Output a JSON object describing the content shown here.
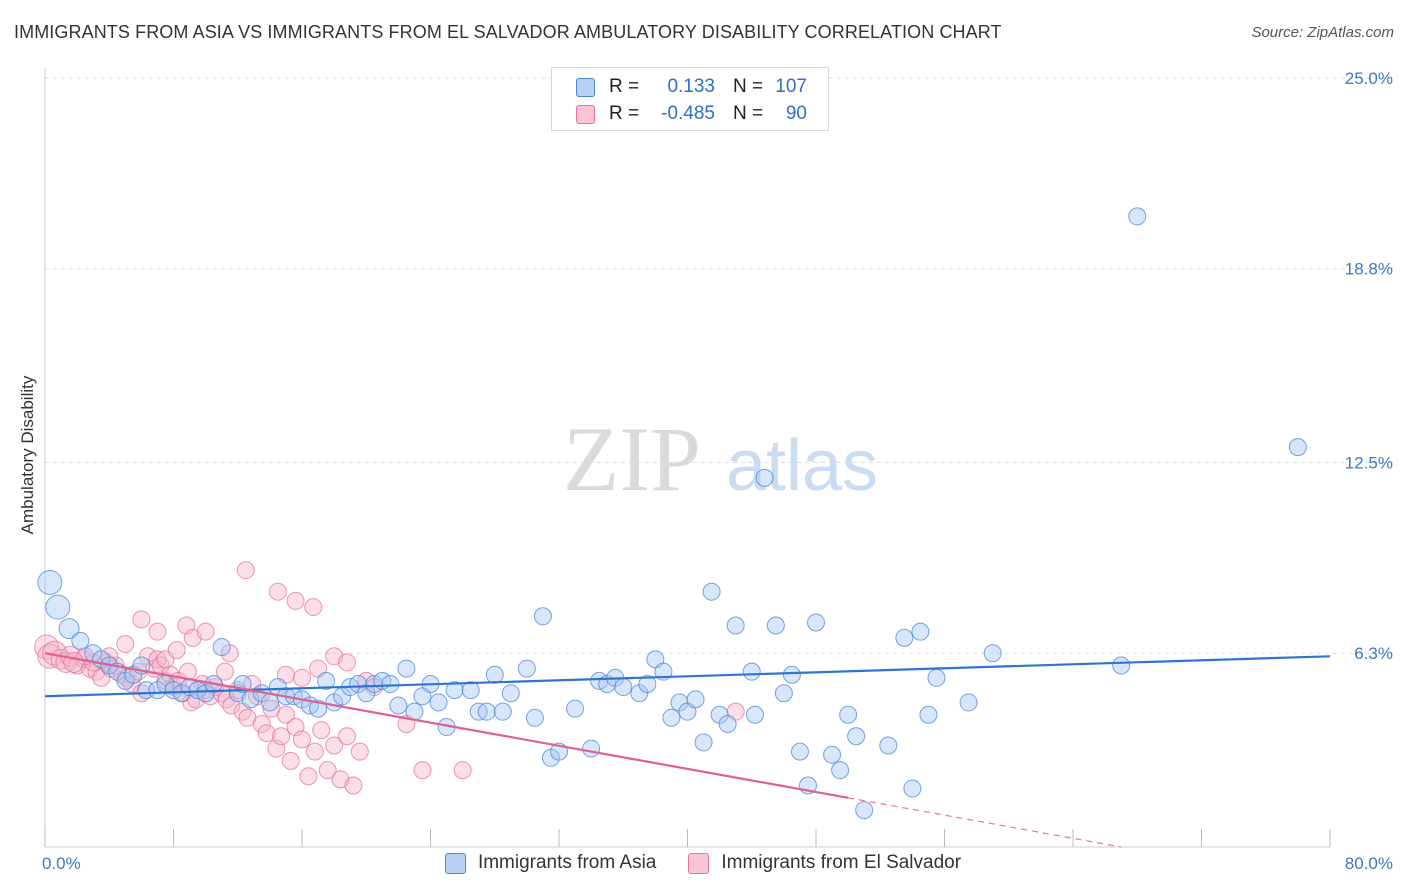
{
  "title": "IMMIGRANTS FROM ASIA VS IMMIGRANTS FROM EL SALVADOR AMBULATORY DISABILITY CORRELATION CHART",
  "source": "Source: ZipAtlas.com",
  "watermark": {
    "zip": "ZIP",
    "atlas": "atlas"
  },
  "colors": {
    "asia": "#4a86d8",
    "asia_fill": "#a9c7f2",
    "salvador": "#e8729c",
    "salvador_fill": "#f5b6cb",
    "axis_label": "#3a78c9",
    "grid": "#dddddd"
  },
  "legend": {
    "asia": {
      "r_label": "R =",
      "r_value": "0.133",
      "n_label": "N =",
      "n_value": "107"
    },
    "salvador": {
      "r_label": "R =",
      "r_value": "-0.485",
      "n_label": "N =",
      "n_value": "90"
    }
  },
  "chart_data": {
    "type": "scatter",
    "title": "IMMIGRANTS FROM ASIA VS IMMIGRANTS FROM EL SALVADOR AMBULATORY DISABILITY CORRELATION CHART",
    "xlabel": "",
    "ylabel": "Ambulatory Disability",
    "xlim": [
      0,
      80
    ],
    "ylim": [
      0,
      25
    ],
    "x_tick_labels": [
      "0.0%",
      "80.0%"
    ],
    "y_tick_labels": [
      "6.3%",
      "12.5%",
      "18.8%",
      "25.0%"
    ],
    "y_ticks": [
      6.3,
      12.5,
      18.8,
      25.0
    ],
    "grid": true,
    "legend_placement": "top-center",
    "series": [
      {
        "name": "Immigrants from Asia",
        "trend": {
          "x": [
            0,
            80
          ],
          "y": [
            4.9,
            6.2
          ]
        },
        "points": [
          [
            0.3,
            8.6
          ],
          [
            0.8,
            7.8
          ],
          [
            1.5,
            7.1
          ],
          [
            2.2,
            6.7
          ],
          [
            3.0,
            6.3
          ],
          [
            3.5,
            6.1
          ],
          [
            4.0,
            5.9
          ],
          [
            4.5,
            5.7
          ],
          [
            5.0,
            5.4
          ],
          [
            5.5,
            5.6
          ],
          [
            6.0,
            5.9
          ],
          [
            6.3,
            5.1
          ],
          [
            7.0,
            5.1
          ],
          [
            7.5,
            5.3
          ],
          [
            8.0,
            5.1
          ],
          [
            8.5,
            5.0
          ],
          [
            9.0,
            5.2
          ],
          [
            9.5,
            5.1
          ],
          [
            10.0,
            5.0
          ],
          [
            10.5,
            5.3
          ],
          [
            11.0,
            6.5
          ],
          [
            12.0,
            5.0
          ],
          [
            12.3,
            5.3
          ],
          [
            12.8,
            4.8
          ],
          [
            13.5,
            5.0
          ],
          [
            14.0,
            4.7
          ],
          [
            14.5,
            5.2
          ],
          [
            15.0,
            4.9
          ],
          [
            15.5,
            4.9
          ],
          [
            16.0,
            4.8
          ],
          [
            16.5,
            4.6
          ],
          [
            17.0,
            4.5
          ],
          [
            17.5,
            5.4
          ],
          [
            18.0,
            4.7
          ],
          [
            18.5,
            4.9
          ],
          [
            19.0,
            5.2
          ],
          [
            19.5,
            5.3
          ],
          [
            20.0,
            5.0
          ],
          [
            20.5,
            5.3
          ],
          [
            21.0,
            5.4
          ],
          [
            21.5,
            5.3
          ],
          [
            22.0,
            4.6
          ],
          [
            22.5,
            5.8
          ],
          [
            23.0,
            4.4
          ],
          [
            23.5,
            4.9
          ],
          [
            24.0,
            5.3
          ],
          [
            24.5,
            4.7
          ],
          [
            25.0,
            3.9
          ],
          [
            25.5,
            5.1
          ],
          [
            26.5,
            5.1
          ],
          [
            27.0,
            4.4
          ],
          [
            27.5,
            4.4
          ],
          [
            28.0,
            5.6
          ],
          [
            28.5,
            4.4
          ],
          [
            29.0,
            5.0
          ],
          [
            30.0,
            5.8
          ],
          [
            30.5,
            4.2
          ],
          [
            31.0,
            7.5
          ],
          [
            31.5,
            2.9
          ],
          [
            32.0,
            3.1
          ],
          [
            33.0,
            4.5
          ],
          [
            34.0,
            3.2
          ],
          [
            34.5,
            5.4
          ],
          [
            35.0,
            5.3
          ],
          [
            35.5,
            5.5
          ],
          [
            36.0,
            5.2
          ],
          [
            37.0,
            5.0
          ],
          [
            37.5,
            5.3
          ],
          [
            38.0,
            6.1
          ],
          [
            38.5,
            5.7
          ],
          [
            39.0,
            4.2
          ],
          [
            39.5,
            4.7
          ],
          [
            40.0,
            4.4
          ],
          [
            40.5,
            4.8
          ],
          [
            41.0,
            3.4
          ],
          [
            41.5,
            8.3
          ],
          [
            42.0,
            4.3
          ],
          [
            42.5,
            4.0
          ],
          [
            43.0,
            7.2
          ],
          [
            44.0,
            5.7
          ],
          [
            44.2,
            4.3
          ],
          [
            44.8,
            12.0
          ],
          [
            45.5,
            7.2
          ],
          [
            46.0,
            5.0
          ],
          [
            46.5,
            5.6
          ],
          [
            47.0,
            3.1
          ],
          [
            47.5,
            2.0
          ],
          [
            48.0,
            7.3
          ],
          [
            49.0,
            3.0
          ],
          [
            49.5,
            2.5
          ],
          [
            50.0,
            4.3
          ],
          [
            50.5,
            3.6
          ],
          [
            51.0,
            1.2
          ],
          [
            52.5,
            3.3
          ],
          [
            53.5,
            6.8
          ],
          [
            54.0,
            1.9
          ],
          [
            54.5,
            7.0
          ],
          [
            55.0,
            4.3
          ],
          [
            55.5,
            5.5
          ],
          [
            57.5,
            4.7
          ],
          [
            59.0,
            6.3
          ],
          [
            67.0,
            5.9
          ],
          [
            68.0,
            20.5
          ],
          [
            78.0,
            13.0
          ]
        ]
      },
      {
        "name": "Immigrants from El Salvador",
        "trend": {
          "x": [
            0,
            50
          ],
          "y": [
            6.3,
            1.6
          ]
        },
        "trend_extrapolated": {
          "x": [
            50,
            67
          ],
          "y": [
            1.6,
            0.0
          ]
        },
        "points": [
          [
            0.1,
            6.5
          ],
          [
            0.3,
            6.2
          ],
          [
            0.6,
            6.3
          ],
          [
            1.0,
            6.1
          ],
          [
            1.3,
            6.0
          ],
          [
            1.6,
            6.2
          ],
          [
            2.0,
            5.9
          ],
          [
            2.4,
            6.1
          ],
          [
            2.8,
            5.8
          ],
          [
            3.2,
            5.7
          ],
          [
            3.5,
            5.5
          ],
          [
            3.8,
            6.0
          ],
          [
            4.1,
            5.8
          ],
          [
            4.4,
            5.9
          ],
          [
            4.8,
            5.6
          ],
          [
            5.1,
            5.5
          ],
          [
            5.4,
            5.3
          ],
          [
            5.8,
            5.7
          ],
          [
            6.0,
            5.0
          ],
          [
            6.4,
            6.2
          ],
          [
            6.8,
            5.8
          ],
          [
            7.0,
            6.1
          ],
          [
            7.2,
            5.9
          ],
          [
            7.5,
            5.4
          ],
          [
            7.8,
            5.6
          ],
          [
            8.0,
            5.2
          ],
          [
            8.3,
            5.4
          ],
          [
            8.6,
            5.0
          ],
          [
            8.9,
            5.7
          ],
          [
            9.1,
            4.7
          ],
          [
            9.4,
            4.8
          ],
          [
            9.8,
            5.3
          ],
          [
            10.0,
            5.1
          ],
          [
            10.3,
            4.9
          ],
          [
            10.6,
            5.2
          ],
          [
            11.0,
            5.0
          ],
          [
            11.3,
            4.8
          ],
          [
            11.6,
            4.6
          ],
          [
            12.0,
            5.1
          ],
          [
            12.3,
            4.4
          ],
          [
            12.6,
            4.2
          ],
          [
            12.9,
            5.3
          ],
          [
            13.2,
            4.9
          ],
          [
            13.5,
            4.0
          ],
          [
            13.8,
            3.7
          ],
          [
            14.1,
            4.5
          ],
          [
            14.4,
            3.2
          ],
          [
            14.7,
            3.6
          ],
          [
            15.0,
            4.3
          ],
          [
            15.3,
            2.8
          ],
          [
            15.6,
            3.9
          ],
          [
            16.0,
            3.5
          ],
          [
            16.4,
            2.3
          ],
          [
            16.8,
            3.1
          ],
          [
            17.2,
            3.8
          ],
          [
            17.6,
            2.5
          ],
          [
            18.0,
            3.3
          ],
          [
            18.4,
            2.2
          ],
          [
            18.8,
            3.6
          ],
          [
            19.2,
            2.0
          ],
          [
            19.6,
            3.1
          ],
          [
            8.8,
            7.2
          ],
          [
            9.2,
            6.8
          ],
          [
            10.0,
            7.0
          ],
          [
            11.5,
            6.3
          ],
          [
            12.5,
            9.0
          ],
          [
            14.5,
            8.3
          ],
          [
            15.6,
            8.0
          ],
          [
            16.7,
            7.8
          ],
          [
            18.0,
            6.2
          ],
          [
            18.8,
            6.0
          ],
          [
            6.0,
            7.4
          ],
          [
            7.0,
            7.0
          ],
          [
            7.5,
            6.1
          ],
          [
            8.2,
            6.4
          ],
          [
            5.0,
            6.6
          ],
          [
            4.0,
            6.2
          ],
          [
            3.0,
            6.0
          ],
          [
            2.5,
            6.2
          ],
          [
            1.8,
            6.0
          ],
          [
            15.0,
            5.6
          ],
          [
            16.0,
            5.5
          ],
          [
            17.0,
            5.8
          ],
          [
            20.0,
            5.4
          ],
          [
            20.5,
            5.2
          ],
          [
            22.5,
            4.0
          ],
          [
            23.5,
            2.5
          ],
          [
            26.0,
            2.5
          ],
          [
            43.0,
            4.4
          ],
          [
            11.2,
            5.7
          ]
        ]
      }
    ]
  }
}
